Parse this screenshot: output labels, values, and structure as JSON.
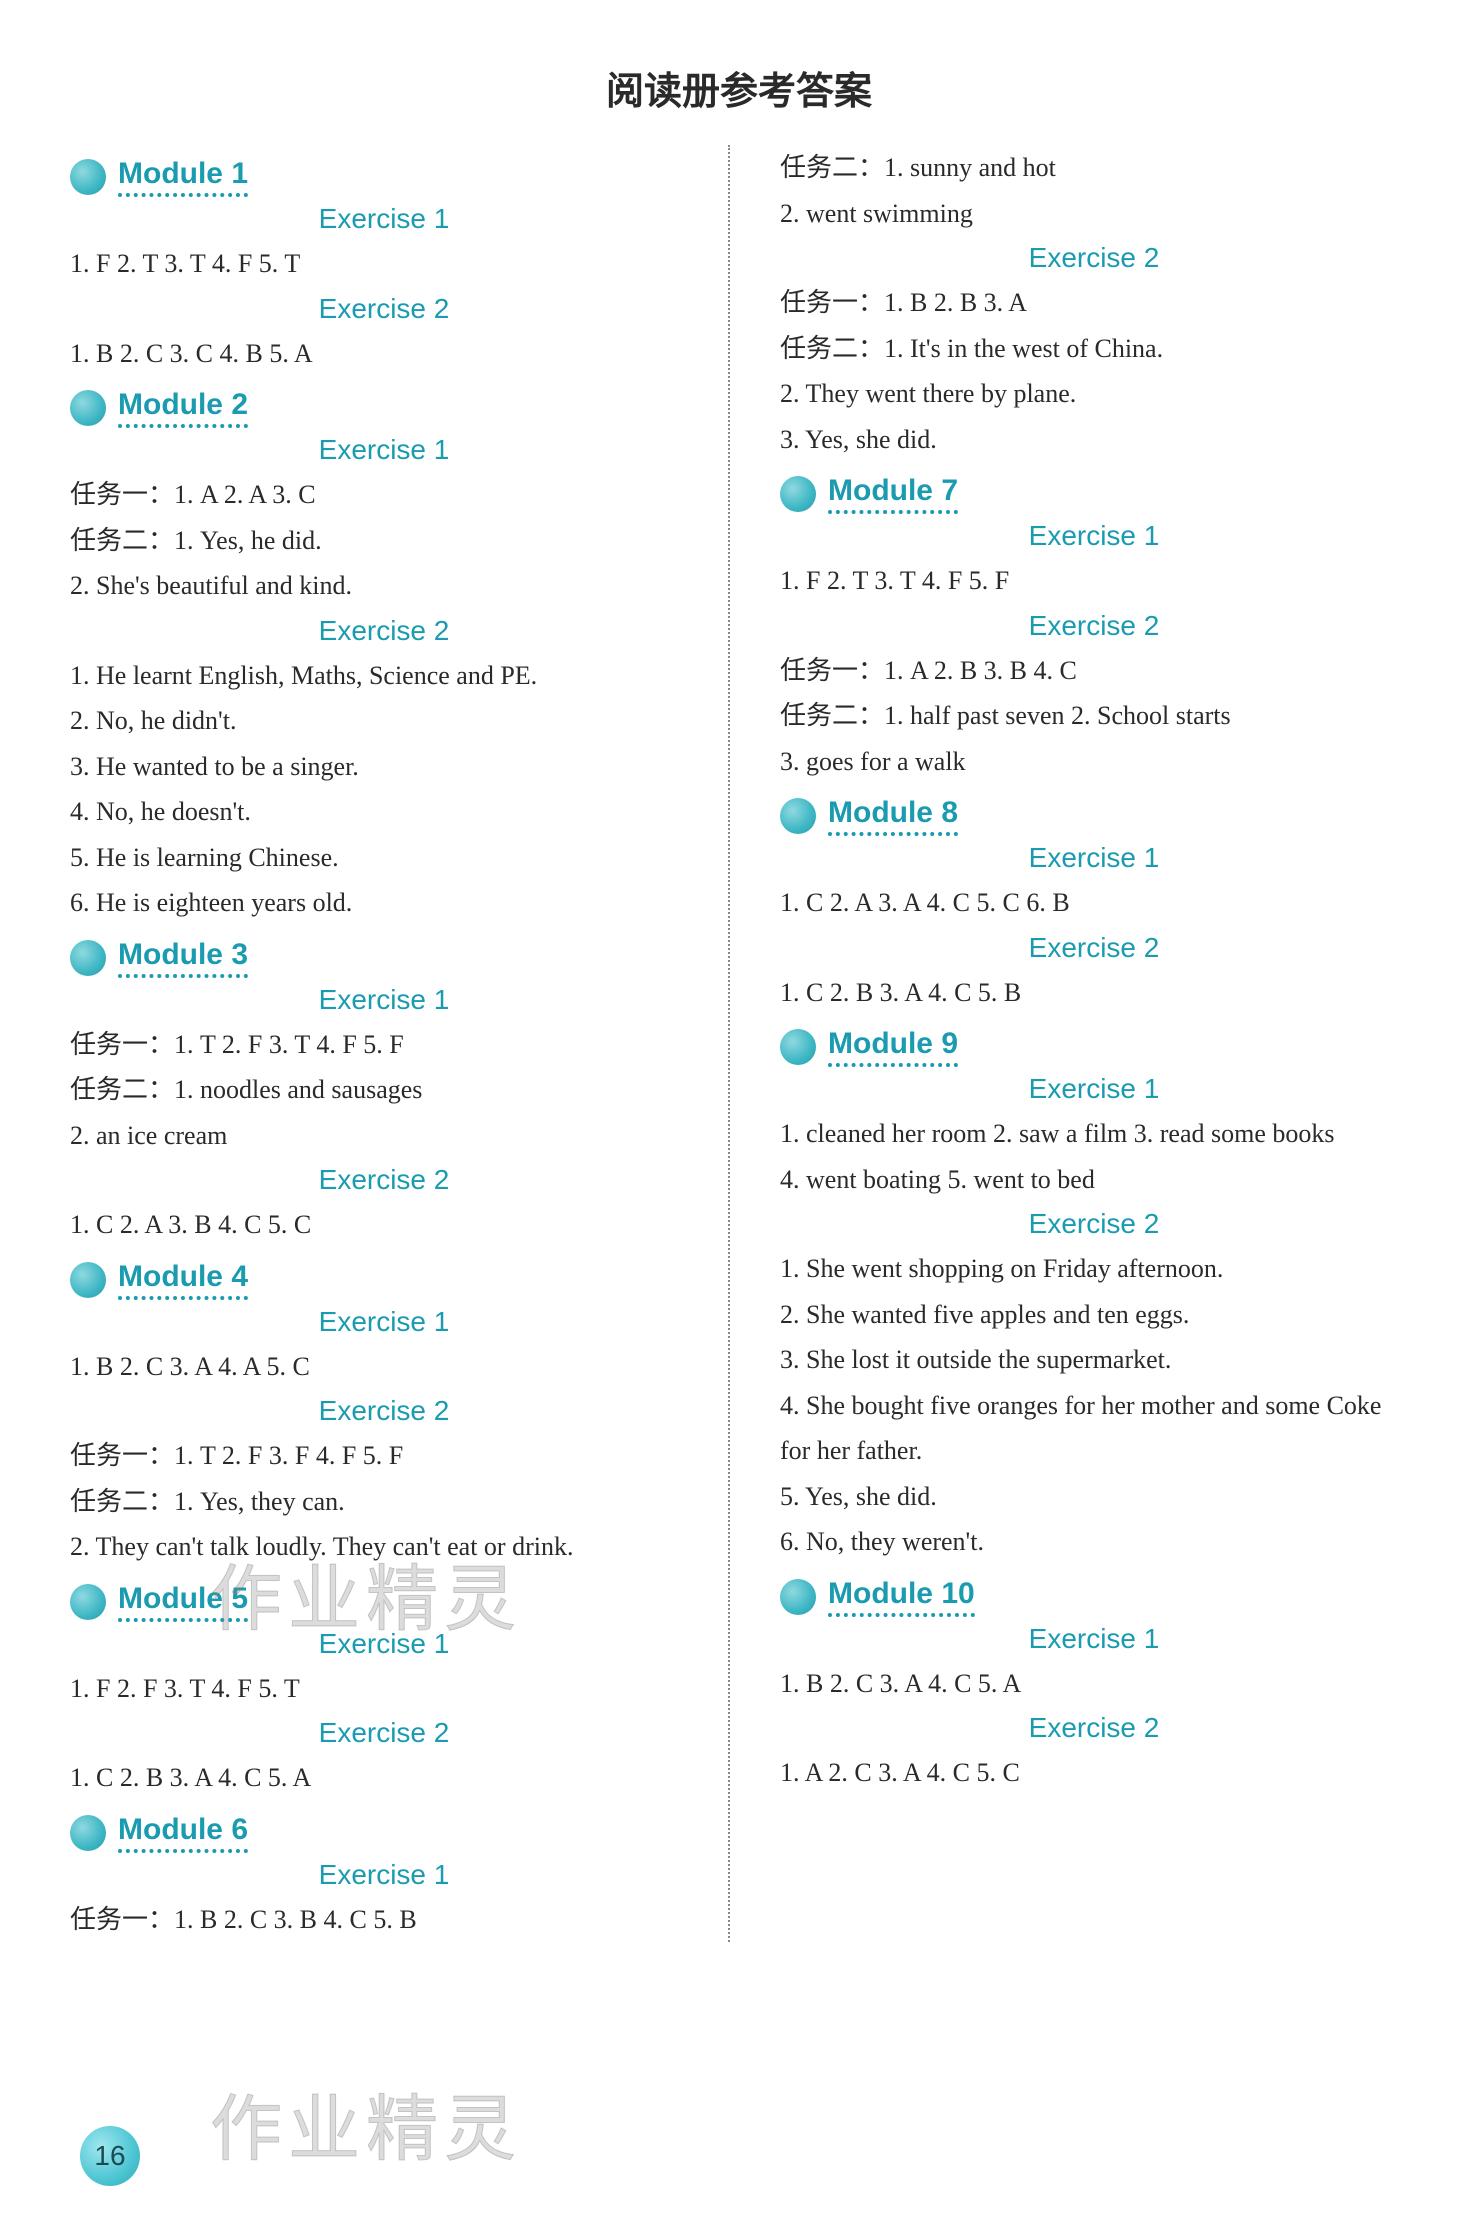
{
  "title": "阅读册参考答案",
  "page_number": "16",
  "watermark": "作业精灵",
  "colors": {
    "accent": "#1a9bb0",
    "text": "#2a2a2a",
    "bullet_light": "#8fd9e0",
    "bullet_dark": "#2a9aa8",
    "background": "#ffffff"
  },
  "typography": {
    "title_fontsize": 38,
    "module_fontsize": 30,
    "exercise_fontsize": 28,
    "body_fontsize": 26
  },
  "left_column": [
    {
      "type": "module",
      "text": "Module 1"
    },
    {
      "type": "exercise",
      "text": "Exercise 1"
    },
    {
      "type": "line",
      "text": "1. F   2. T   3. T   4. F   5. T"
    },
    {
      "type": "exercise",
      "text": "Exercise 2"
    },
    {
      "type": "line",
      "text": "1. B   2. C   3. C   4. B   5. A"
    },
    {
      "type": "module",
      "text": "Module 2"
    },
    {
      "type": "exercise",
      "text": "Exercise 1"
    },
    {
      "type": "line",
      "text": "任务一：1. A   2. A   3. C"
    },
    {
      "type": "line",
      "text": "任务二：1. Yes, he did."
    },
    {
      "type": "line",
      "text": "2. She's beautiful and kind."
    },
    {
      "type": "exercise",
      "text": "Exercise 2"
    },
    {
      "type": "line",
      "text": "1. He learnt English, Maths, Science and PE."
    },
    {
      "type": "line",
      "text": "2. No, he didn't."
    },
    {
      "type": "line",
      "text": "3. He wanted to be a singer."
    },
    {
      "type": "line",
      "text": "4. No, he doesn't."
    },
    {
      "type": "line",
      "text": "5. He is learning Chinese."
    },
    {
      "type": "line",
      "text": "6. He is eighteen years old."
    },
    {
      "type": "module",
      "text": "Module 3"
    },
    {
      "type": "exercise",
      "text": "Exercise 1"
    },
    {
      "type": "line",
      "text": "任务一：1. T   2. F   3. T   4. F   5. F"
    },
    {
      "type": "line",
      "text": "任务二：1. noodles and sausages"
    },
    {
      "type": "line",
      "text": "2. an ice cream"
    },
    {
      "type": "exercise",
      "text": "Exercise 2"
    },
    {
      "type": "line",
      "text": "1. C   2. A   3. B   4. C   5. C"
    },
    {
      "type": "module",
      "text": "Module 4"
    },
    {
      "type": "exercise",
      "text": "Exercise 1"
    },
    {
      "type": "line",
      "text": "1. B   2. C   3. A   4. A   5. C"
    },
    {
      "type": "exercise",
      "text": "Exercise 2"
    },
    {
      "type": "line",
      "text": "任务一：1. T   2. F   3. F   4. F   5. F"
    },
    {
      "type": "line",
      "text": "任务二：1. Yes, they can."
    },
    {
      "type": "line",
      "text": "2. They can't talk loudly. They can't eat or drink."
    },
    {
      "type": "module",
      "text": "Module 5"
    },
    {
      "type": "exercise",
      "text": "Exercise 1"
    },
    {
      "type": "line",
      "text": "1. F   2. F   3. T   4. F   5. T"
    },
    {
      "type": "exercise",
      "text": "Exercise 2"
    },
    {
      "type": "line",
      "text": "1. C   2. B   3. A   4. C   5. A"
    },
    {
      "type": "module",
      "text": "Module 6"
    },
    {
      "type": "exercise",
      "text": "Exercise 1"
    },
    {
      "type": "line",
      "text": "任务一：1. B   2. C   3. B   4. C   5. B"
    }
  ],
  "right_column": [
    {
      "type": "line",
      "text": "任务二：1. sunny and hot"
    },
    {
      "type": "line",
      "text": "2. went swimming"
    },
    {
      "type": "exercise",
      "text": "Exercise 2"
    },
    {
      "type": "line",
      "text": "任务一：1. B   2. B   3. A"
    },
    {
      "type": "line",
      "text": "任务二：1. It's in the west of China."
    },
    {
      "type": "line",
      "text": "2. They went there by plane."
    },
    {
      "type": "line",
      "text": "3. Yes, she did."
    },
    {
      "type": "module",
      "text": "Module 7"
    },
    {
      "type": "exercise",
      "text": "Exercise 1"
    },
    {
      "type": "line",
      "text": "1. F   2. T   3. T   4. F   5. F"
    },
    {
      "type": "exercise",
      "text": "Exercise 2"
    },
    {
      "type": "line",
      "text": "任务一：1. A   2. B   3. B   4. C"
    },
    {
      "type": "line",
      "text": "任务二：1. half past seven   2. School starts"
    },
    {
      "type": "line",
      "text": "3. goes for a walk"
    },
    {
      "type": "module",
      "text": "Module 8"
    },
    {
      "type": "exercise",
      "text": "Exercise 1"
    },
    {
      "type": "line",
      "text": "1. C   2. A   3. A   4. C   5. C   6. B"
    },
    {
      "type": "exercise",
      "text": "Exercise 2"
    },
    {
      "type": "line",
      "text": "1. C   2. B   3. A   4. C   5. B"
    },
    {
      "type": "module",
      "text": "Module 9"
    },
    {
      "type": "exercise",
      "text": "Exercise 1"
    },
    {
      "type": "line",
      "text": "1. cleaned her room   2. saw a film   3. read some books"
    },
    {
      "type": "line",
      "text": "4. went boating   5. went to bed"
    },
    {
      "type": "exercise",
      "text": "Exercise 2"
    },
    {
      "type": "line",
      "text": "1. She went shopping on Friday afternoon."
    },
    {
      "type": "line",
      "text": "2. She wanted five apples and ten eggs."
    },
    {
      "type": "line",
      "text": "3. She lost it outside the supermarket."
    },
    {
      "type": "line",
      "text": "4. She bought five oranges for her mother and some Coke"
    },
    {
      "type": "line",
      "text": "    for her father."
    },
    {
      "type": "line",
      "text": "5. Yes, she did."
    },
    {
      "type": "line",
      "text": "6. No, they weren't."
    },
    {
      "type": "module",
      "text": "Module 10"
    },
    {
      "type": "exercise",
      "text": "Exercise 1"
    },
    {
      "type": "line",
      "text": "1. B   2. C   3. A   4. C   5. A"
    },
    {
      "type": "exercise",
      "text": "Exercise 2"
    },
    {
      "type": "line",
      "text": "1. A   2. C   3. A   4. C   5. C"
    }
  ]
}
